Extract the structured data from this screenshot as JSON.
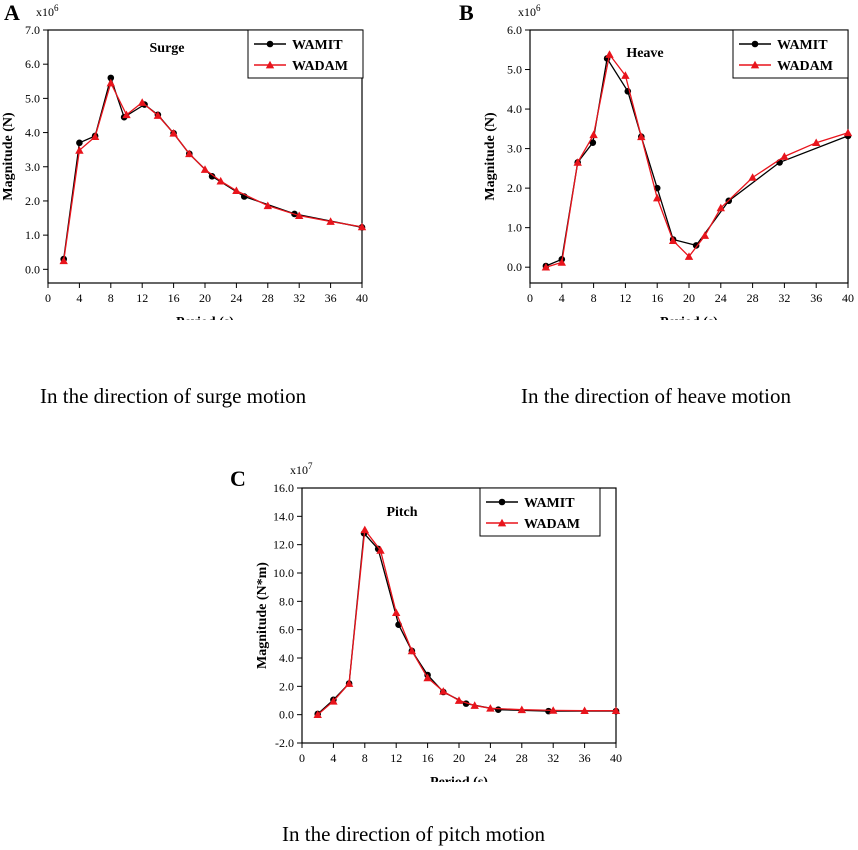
{
  "figure": {
    "panels": [
      {
        "letter": "A",
        "caption": "In the direction of surge motion"
      },
      {
        "letter": "B",
        "caption": "In the direction of heave motion"
      },
      {
        "letter": "C",
        "caption": "In the direction of pitch motion"
      }
    ]
  },
  "chart_data": [
    {
      "type": "line",
      "panel": "A",
      "title": "Surge",
      "xlabel": "Period (s)",
      "ylabel": "Magnitude (N)",
      "multiplier": "x10",
      "multiplier_exp": "6",
      "xlim": [
        0,
        40
      ],
      "ylim": [
        -0.4,
        7.0
      ],
      "xticks": [
        0,
        4,
        8,
        12,
        16,
        20,
        24,
        28,
        32,
        36,
        40
      ],
      "xtick_labels": [
        "0",
        "4",
        "8",
        "12",
        "16",
        "20",
        "24",
        "28",
        "32",
        "36",
        "40"
      ],
      "yticks": [
        0,
        1,
        2,
        3,
        4,
        5,
        6,
        7
      ],
      "ytick_labels": [
        "0.0",
        "1.0",
        "2.0",
        "3.0",
        "4.0",
        "5.0",
        "6.0",
        "7.0"
      ],
      "legend": "top-right",
      "series": [
        {
          "name": "WAMIT",
          "color": "#000000",
          "marker": "circle",
          "x": [
            2,
            4,
            6,
            8,
            9.7,
            12.3,
            14,
            16,
            18,
            20.9,
            25,
            31.4,
            40
          ],
          "y": [
            0.3,
            3.7,
            3.9,
            5.6,
            4.45,
            4.82,
            4.52,
            3.98,
            3.38,
            2.72,
            2.13,
            1.62,
            1.23
          ]
        },
        {
          "name": "WADAM",
          "color": "#e8141c",
          "marker": "triangle",
          "x": [
            2,
            4,
            6,
            8,
            10,
            12,
            14,
            16,
            18,
            20,
            22,
            24,
            28,
            32,
            36,
            40
          ],
          "y": [
            0.25,
            3.48,
            3.88,
            5.45,
            4.52,
            4.88,
            4.5,
            3.98,
            3.38,
            2.92,
            2.58,
            2.3,
            1.86,
            1.57,
            1.4,
            1.24
          ]
        }
      ]
    },
    {
      "type": "line",
      "panel": "B",
      "title": "Heave",
      "xlabel": "Period (s)",
      "ylabel": "Magnitude (N)",
      "multiplier": "x10",
      "multiplier_exp": "6",
      "xlim": [
        0,
        40
      ],
      "ylim": [
        -0.4,
        6.0
      ],
      "xticks": [
        0,
        4,
        8,
        12,
        16,
        20,
        24,
        28,
        32,
        36,
        40
      ],
      "xtick_labels": [
        "0",
        "4",
        "8",
        "12",
        "16",
        "20",
        "24",
        "28",
        "32",
        "36",
        "40"
      ],
      "yticks": [
        0,
        1,
        2,
        3,
        4,
        5,
        6
      ],
      "ytick_labels": [
        "0.0",
        "1.0",
        "2.0",
        "3.0",
        "4.0",
        "5.0",
        "6.0"
      ],
      "legend": "top-right",
      "series": [
        {
          "name": "WAMIT",
          "color": "#000000",
          "marker": "circle",
          "x": [
            2,
            4,
            6,
            7.9,
            9.7,
            12.3,
            14,
            16,
            18,
            20.9,
            25,
            31.4,
            40
          ],
          "y": [
            0.03,
            0.2,
            2.65,
            3.15,
            5.28,
            4.45,
            3.3,
            2.0,
            0.7,
            0.55,
            1.68,
            2.65,
            3.32
          ]
        },
        {
          "name": "WADAM",
          "color": "#e8141c",
          "marker": "triangle",
          "x": [
            2,
            4,
            6,
            8,
            10,
            12,
            14,
            16,
            18,
            20,
            22,
            24,
            28,
            32,
            36,
            40
          ],
          "y": [
            0.0,
            0.12,
            2.65,
            3.35,
            5.38,
            4.85,
            3.3,
            1.75,
            0.67,
            0.27,
            0.8,
            1.5,
            2.27,
            2.8,
            3.15,
            3.4
          ]
        }
      ]
    },
    {
      "type": "line",
      "panel": "C",
      "title": "Pitch",
      "xlabel": "Period (s)",
      "ylabel": "Magnitude (N*m)",
      "multiplier": "x10",
      "multiplier_exp": "7",
      "xlim": [
        0,
        40
      ],
      "ylim": [
        -2.0,
        16.0
      ],
      "xticks": [
        0,
        4,
        8,
        12,
        16,
        20,
        24,
        28,
        32,
        36,
        40
      ],
      "xtick_labels": [
        "0",
        "4",
        "8",
        "12",
        "16",
        "20",
        "24",
        "28",
        "32",
        "36",
        "40"
      ],
      "yticks": [
        -2,
        0,
        2,
        4,
        6,
        8,
        10,
        12,
        14,
        16
      ],
      "ytick_labels": [
        "-2.0",
        "0.0",
        "2.0",
        "4.0",
        "6.0",
        "8.0",
        "10.0",
        "12.0",
        "14.0",
        "16.0"
      ],
      "legend": "top-right",
      "series": [
        {
          "name": "WAMIT",
          "color": "#000000",
          "marker": "circle",
          "x": [
            2,
            4,
            6,
            7.9,
            9.7,
            12.3,
            14,
            16,
            18,
            20.9,
            25,
            31.4,
            40
          ],
          "y": [
            0.05,
            1.05,
            2.2,
            12.8,
            11.7,
            6.35,
            4.5,
            2.8,
            1.6,
            0.78,
            0.35,
            0.25,
            0.25
          ]
        },
        {
          "name": "WADAM",
          "color": "#e8141c",
          "marker": "triangle",
          "x": [
            2,
            4,
            6,
            8,
            10,
            12,
            14,
            16,
            18,
            20,
            22,
            24,
            28,
            32,
            36,
            40
          ],
          "y": [
            0.0,
            0.95,
            2.2,
            13.05,
            11.6,
            7.2,
            4.5,
            2.6,
            1.65,
            1.0,
            0.65,
            0.45,
            0.35,
            0.3,
            0.28,
            0.28
          ]
        }
      ]
    }
  ]
}
